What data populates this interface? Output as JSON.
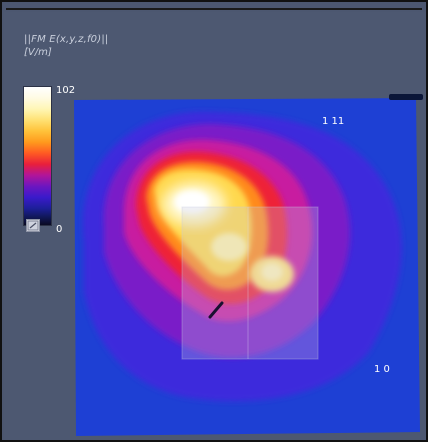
{
  "field": {
    "title": "||FM E(x,y,z,f0)||",
    "unit": "[V/m]"
  },
  "colorbar": {
    "max_label": "102",
    "min_label": "0",
    "max_value": 102,
    "min_value": 0,
    "toggle_icon": "colorbar-toggle-icon"
  },
  "markers": {
    "upper_right": "1 11",
    "lower_right": "1 0"
  },
  "colors": {
    "background": "#4d5871",
    "field_low": "#1f3fd2",
    "field_high": "#ffffff",
    "overlay_box": "#c7c9e0"
  }
}
